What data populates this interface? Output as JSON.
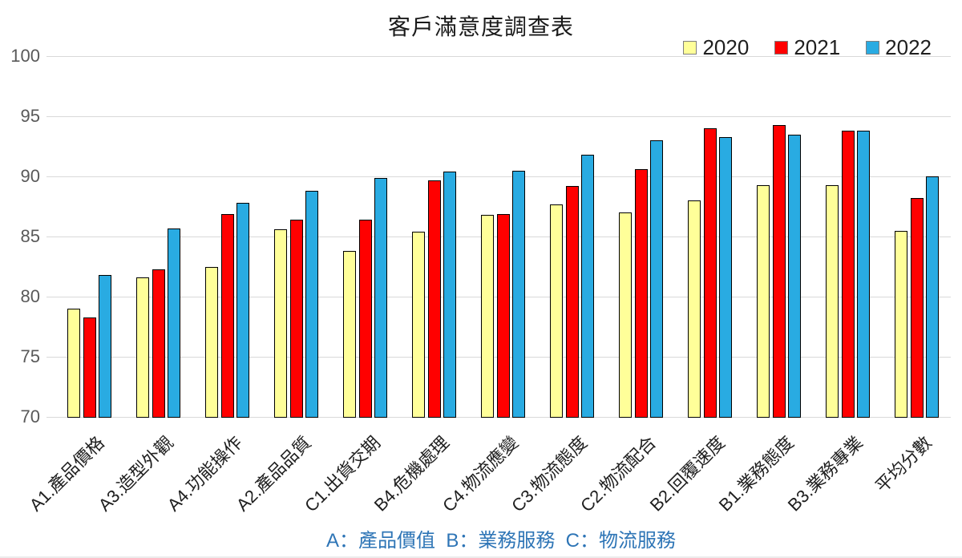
{
  "chart_data": {
    "type": "bar",
    "title": "客戶滿意度調查表",
    "footnote": "A：產品價值  B：業務服務  C：物流服務",
    "categories": [
      "A1.產品價格",
      "A3.造型外觀",
      "A4.功能操作",
      "A2.產品品質",
      "C1.出貨交期",
      "B4.危機處理",
      "C4.物流應變",
      "C3.物流態度",
      "C2.物流配合",
      "B2.回覆速度",
      "B1.業務態度",
      "B3.業務專業",
      "平均分數"
    ],
    "series": [
      {
        "name": "2020",
        "color": "#FFFF99",
        "values": [
          79.0,
          81.6,
          82.5,
          85.6,
          83.8,
          85.4,
          86.8,
          87.7,
          87.0,
          88.0,
          89.3,
          89.3,
          85.5
        ]
      },
      {
        "name": "2021",
        "color": "#FF0000",
        "values": [
          78.3,
          82.3,
          86.9,
          86.4,
          86.4,
          89.7,
          86.9,
          89.2,
          90.6,
          94.0,
          94.3,
          93.8,
          88.2
        ]
      },
      {
        "name": "2022",
        "color": "#29ABE2",
        "values": [
          81.8,
          85.7,
          87.8,
          88.8,
          89.9,
          90.4,
          90.5,
          91.8,
          93.0,
          93.3,
          93.5,
          93.8,
          90.0
        ]
      }
    ],
    "ylim": [
      70,
      100
    ],
    "yticks": [
      100,
      95,
      90,
      85,
      80,
      75,
      70
    ],
    "grid": true,
    "legend_position": "top-right",
    "gridline_color": "#D9D9D9",
    "bar_border_color": "#000000",
    "footnote_color": "#2E75B6"
  }
}
